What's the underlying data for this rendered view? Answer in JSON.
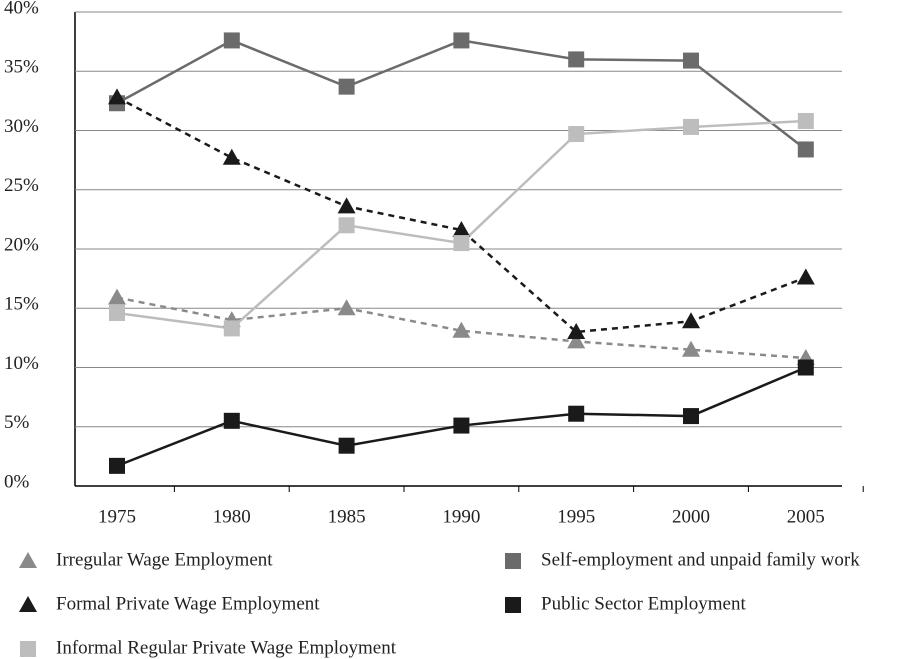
{
  "chart_data": {
    "type": "line",
    "categories": [
      "1975",
      "1980",
      "1985",
      "1990",
      "1995",
      "2000",
      "2005"
    ],
    "ylim": [
      0,
      40
    ],
    "yticks": [
      {
        "value": 0,
        "label": "0%"
      },
      {
        "value": 5,
        "label": "5%"
      },
      {
        "value": 10,
        "label": "10%"
      },
      {
        "value": 15,
        "label": "15%"
      },
      {
        "value": 20,
        "label": "20%"
      },
      {
        "value": 25,
        "label": "25%"
      },
      {
        "value": 30,
        "label": "30%"
      },
      {
        "value": 35,
        "label": "35%"
      },
      {
        "value": 40,
        "label": "40%"
      }
    ],
    "grid": true,
    "series": [
      {
        "name": "Irregular Wage Employment",
        "color": "#8a8a8a",
        "marker": "triangle",
        "dashed": true,
        "values": [
          15.9,
          14.0,
          15.0,
          13.1,
          12.2,
          11.5,
          10.8
        ]
      },
      {
        "name": "Self-employment and unpaid family work",
        "color": "#6b6b6b",
        "marker": "square",
        "dashed": false,
        "values": [
          32.3,
          37.6,
          33.7,
          37.6,
          36.0,
          35.9,
          28.4
        ]
      },
      {
        "name": "Formal Private Wage Employment",
        "color": "#1a1a1a",
        "marker": "triangle",
        "dashed": true,
        "values": [
          32.8,
          27.7,
          23.6,
          21.6,
          13.0,
          13.9,
          17.6
        ]
      },
      {
        "name": "Public Sector Employment",
        "color": "#1a1a1a",
        "marker": "square",
        "dashed": false,
        "values": [
          1.7,
          5.5,
          3.4,
          5.1,
          6.1,
          5.9,
          10.0
        ]
      },
      {
        "name": "Informal Regular Private Wage Employment",
        "color": "#bdbdbd",
        "marker": "square",
        "dashed": false,
        "values": [
          14.6,
          13.3,
          22.0,
          20.5,
          29.7,
          30.3,
          30.8
        ]
      }
    ]
  }
}
